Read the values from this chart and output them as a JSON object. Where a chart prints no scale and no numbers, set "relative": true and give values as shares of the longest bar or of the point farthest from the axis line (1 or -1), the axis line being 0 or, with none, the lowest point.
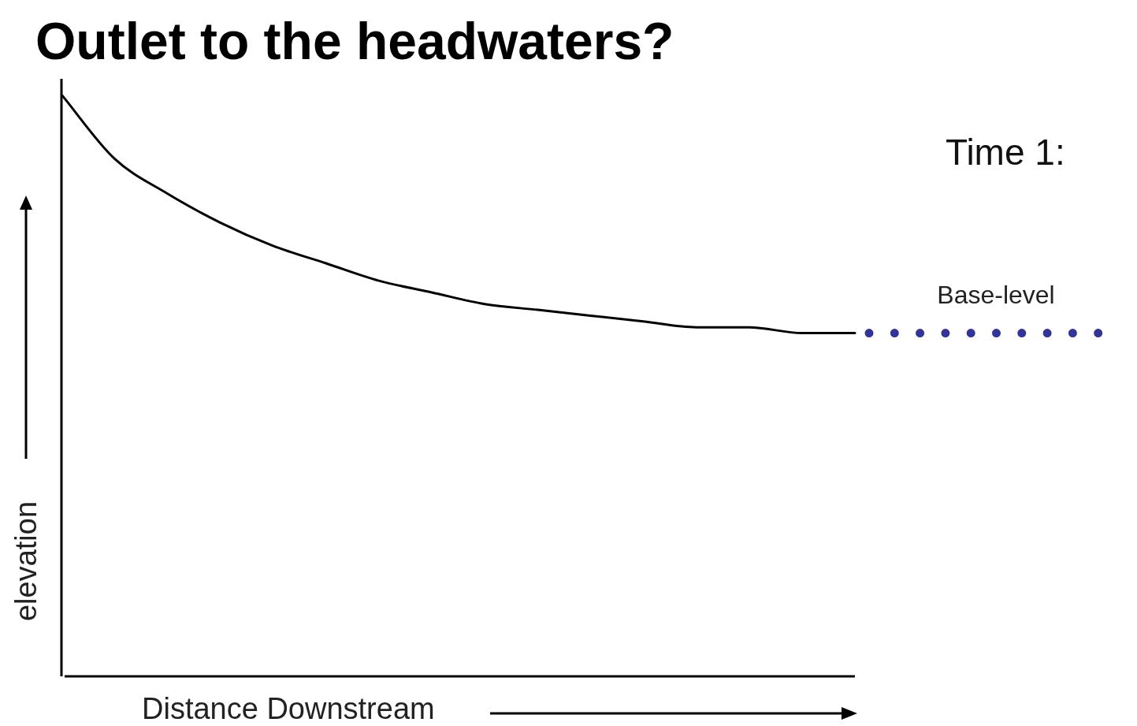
{
  "chart_data": {
    "type": "line",
    "title": "Outlet to the headwaters?",
    "xlabel": "Distance Downstream",
    "ylabel": "elevation",
    "categories": [
      null,
      null,
      null,
      null,
      null,
      null,
      null,
      null,
      null,
      null,
      null,
      null,
      null,
      null,
      null,
      null
    ],
    "series": [
      {
        "color": "#000000",
        "values": [
          1.0,
          0.89,
          0.83,
          0.78,
          0.74,
          0.71,
          0.68,
          0.66,
          0.64,
          0.63,
          0.62,
          0.61,
          0.6,
          0.6,
          0.59,
          0.59
        ]
      }
    ],
    "relative": true,
    "ref_lines": [
      {
        "axis": "y",
        "value": 0.59,
        "label": "Base-level",
        "color": "#333399",
        "line_style": "dotted"
      }
    ],
    "annotations": [
      "Time 1:"
    ]
  }
}
